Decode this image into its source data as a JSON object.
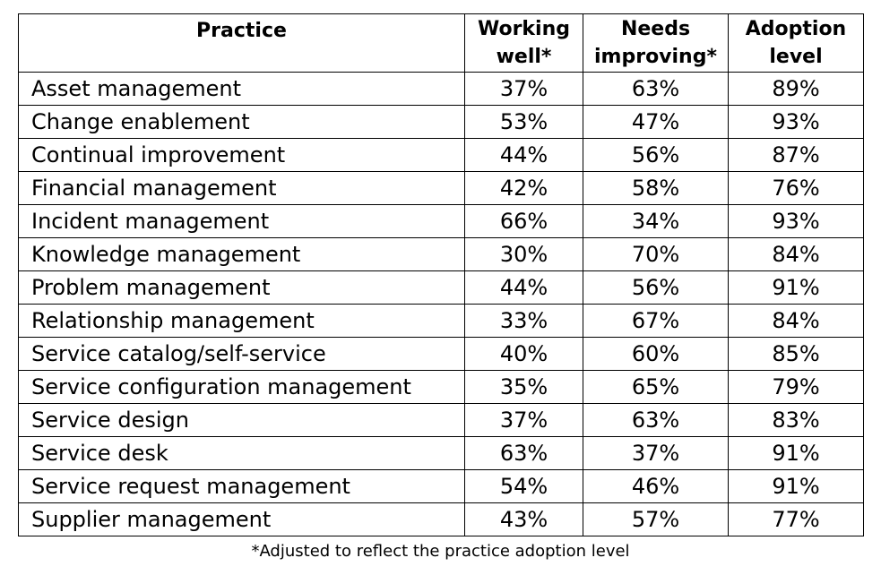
{
  "table": {
    "headers": [
      "Practice",
      "Working well*",
      "Needs improving*",
      "Adoption level"
    ],
    "rows": [
      [
        "Asset management",
        "37%",
        "63%",
        "89%"
      ],
      [
        "Change enablement",
        "53%",
        "47%",
        "93%"
      ],
      [
        "Continual improvement",
        "44%",
        "56%",
        "87%"
      ],
      [
        "Financial management",
        "42%",
        "58%",
        "76%"
      ],
      [
        "Incident management",
        "66%",
        "34%",
        "93%"
      ],
      [
        "Knowledge management",
        "30%",
        "70%",
        "84%"
      ],
      [
        "Problem management",
        "44%",
        "56%",
        "91%"
      ],
      [
        "Relationship management",
        "33%",
        "67%",
        "84%"
      ],
      [
        "Service catalog/self-service",
        "40%",
        "60%",
        "85%"
      ],
      [
        "Service configuration management",
        "35%",
        "65%",
        "79%"
      ],
      [
        "Service design",
        "37%",
        "63%",
        "83%"
      ],
      [
        "Service desk",
        "63%",
        "37%",
        "91%"
      ],
      [
        "Service request management",
        "54%",
        "46%",
        "91%"
      ],
      [
        "Supplier management",
        "43%",
        "57%",
        "77%"
      ]
    ]
  },
  "footnote": "*Adjusted to reflect the practice adoption level"
}
